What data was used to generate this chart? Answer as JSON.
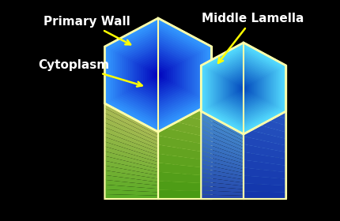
{
  "bg_color": "#000000",
  "labels": {
    "primary_wall": "Primary Wall",
    "middle_lamella": "Middle Lamella",
    "cytoplasm": "Cytoplasm"
  },
  "label_color": "#ffffff",
  "arrow_color": "#ffff00",
  "label_fontsize": 11,
  "border_color": "#ffffaa",
  "border_lw": 1.5
}
